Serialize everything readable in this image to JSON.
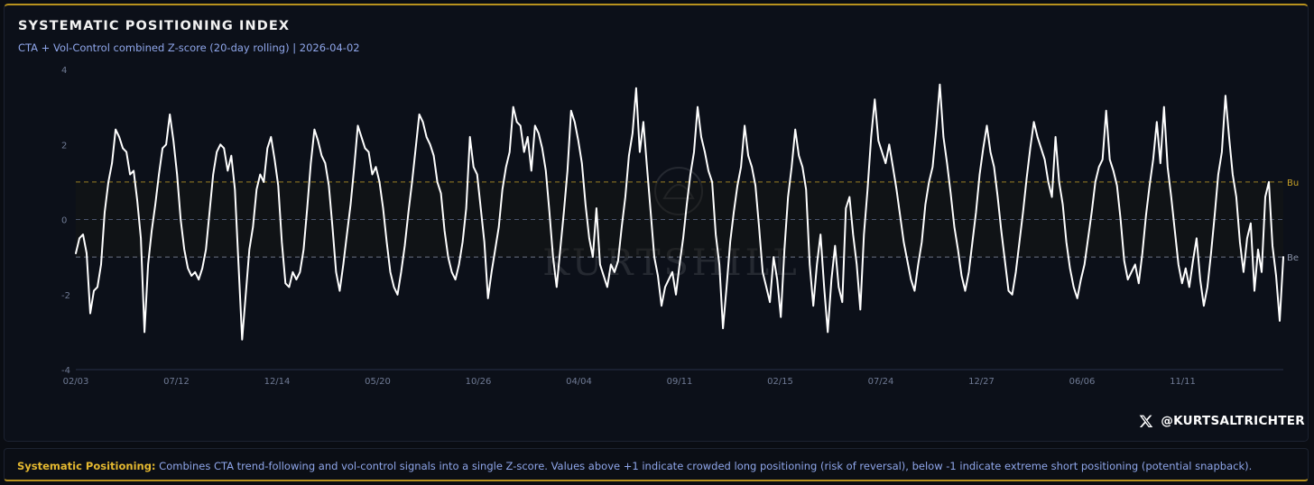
{
  "header": {
    "title": "SYSTEMATIC POSITIONING INDEX",
    "subtitle": "CTA + Vol-Control combined Z-score (20-day rolling) | 2026-04-02"
  },
  "watermark": "KURTSHILL",
  "handle": {
    "text": "@KURTSALTRICHTER",
    "icon": "x-logo-icon"
  },
  "footer": {
    "lead": "Systematic Positioning:",
    "text": " Combines CTA trend-following and vol-control signals into a single Z-score. Values above +1 indicate crowded long positioning (risk of reversal), below -1 indicate extreme short positioning (potential snapback)."
  },
  "colors": {
    "line": "#ffffff",
    "bull": "#c9a227",
    "bear": "#8a93a8",
    "zero": "#5f6b8a",
    "accent": "#e4b830"
  },
  "chart_data": {
    "type": "line",
    "title": "SYSTEMATIC POSITIONING INDEX",
    "subtitle": "CTA + Vol-Control combined Z-score (20-day rolling) | 2026-04-02",
    "ylim": [
      -4,
      4
    ],
    "y_ticks": [
      4,
      2,
      0,
      -2,
      -4
    ],
    "x_ticks": [
      "02/03",
      "07/12",
      "12/14",
      "05/20",
      "10/26",
      "04/04",
      "09/11",
      "02/15",
      "07/24",
      "12/27",
      "06/06",
      "11/11"
    ],
    "reference_lines": [
      {
        "label": "Bu",
        "value": 1,
        "color": "#c9a227"
      },
      {
        "label": "Be",
        "value": -1,
        "color": "#8a93a8"
      },
      {
        "label": "",
        "value": 0,
        "color": "#5f6b8a"
      }
    ],
    "series": [
      {
        "values": [
          -0.9,
          -0.5,
          -0.4,
          -0.9,
          -2.5,
          -1.9,
          -1.8,
          -1.2,
          0.2,
          1.0,
          1.5,
          2.4,
          2.2,
          1.9,
          1.8,
          1.2,
          1.3,
          0.5,
          -0.5,
          -3.0,
          -1.2,
          -0.3,
          0.4,
          1.2,
          1.9,
          2.0,
          2.8,
          2.1,
          1.2,
          0.0,
          -0.8,
          -1.3,
          -1.5,
          -1.4,
          -1.6,
          -1.3,
          -0.8,
          0.2,
          1.2,
          1.8,
          2.0,
          1.9,
          1.3,
          1.7,
          0.8,
          -1.2,
          -3.2,
          -2.0,
          -0.8,
          -0.2,
          0.8,
          1.2,
          1.0,
          1.9,
          2.2,
          1.6,
          0.9,
          -0.6,
          -1.7,
          -1.8,
          -1.4,
          -1.6,
          -1.4,
          -0.8,
          0.3,
          1.5,
          2.4,
          2.1,
          1.7,
          1.5,
          0.9,
          -0.2,
          -1.4,
          -1.9,
          -1.2,
          -0.4,
          0.4,
          1.4,
          2.5,
          2.2,
          1.9,
          1.8,
          1.2,
          1.4,
          1.0,
          0.3,
          -0.6,
          -1.4,
          -1.8,
          -2.0,
          -1.4,
          -0.7,
          0.2,
          1.0,
          1.9,
          2.8,
          2.6,
          2.2,
          2.0,
          1.7,
          1.0,
          0.7,
          -0.3,
          -1.0,
          -1.4,
          -1.6,
          -1.2,
          -0.6,
          0.3,
          2.2,
          1.4,
          1.2,
          0.3,
          -0.6,
          -2.1,
          -1.4,
          -0.8,
          -0.2,
          0.8,
          1.4,
          1.8,
          3.0,
          2.6,
          2.5,
          1.8,
          2.2,
          1.3,
          2.5,
          2.3,
          1.9,
          1.3,
          0.2,
          -1.0,
          -1.8,
          -0.8,
          0.2,
          1.3,
          2.9,
          2.6,
          2.1,
          1.5,
          0.4,
          -0.5,
          -1.0,
          0.3,
          -1.2,
          -1.5,
          -1.8,
          -1.2,
          -1.4,
          -1.1,
          -0.2,
          0.6,
          1.7,
          2.3,
          3.5,
          1.8,
          2.6,
          1.4,
          0.2,
          -1.0,
          -1.5,
          -2.3,
          -1.8,
          -1.6,
          -1.4,
          -2.0,
          -1.2,
          -0.5,
          0.4,
          1.2,
          1.8,
          3.0,
          2.2,
          1.8,
          1.3,
          1.0,
          -0.4,
          -1.2,
          -2.9,
          -1.8,
          -0.6,
          0.2,
          0.9,
          1.4,
          2.5,
          1.7,
          1.4,
          0.9,
          -0.2,
          -1.4,
          -1.8,
          -2.2,
          -1.0,
          -1.6,
          -2.6,
          -0.8,
          0.6,
          1.4,
          2.4,
          1.7,
          1.4,
          0.8,
          -1.2,
          -2.3,
          -1.2,
          -0.4,
          -1.8,
          -3.0,
          -1.6,
          -0.7,
          -1.8,
          -2.2,
          0.3,
          0.6,
          -0.4,
          -1.2,
          -2.4,
          -0.4,
          0.8,
          2.2,
          3.2,
          2.1,
          1.8,
          1.5,
          2.0,
          1.4,
          0.8,
          0.1,
          -0.6,
          -1.1,
          -1.6,
          -1.9,
          -1.2,
          -0.6,
          0.4,
          1.0,
          1.4,
          2.4,
          3.6,
          2.2,
          1.5,
          0.7,
          -0.2,
          -0.8,
          -1.5,
          -1.9,
          -1.4,
          -0.6,
          0.2,
          1.2,
          1.9,
          2.5,
          1.8,
          1.4,
          0.6,
          -0.3,
          -1.1,
          -1.9,
          -2.0,
          -1.4,
          -0.6,
          0.2,
          1.1,
          1.9,
          2.6,
          2.2,
          1.9,
          1.6,
          1.0,
          0.6,
          2.2,
          1.0,
          0.4,
          -0.6,
          -1.3,
          -1.8,
          -2.1,
          -1.6,
          -1.2,
          -0.5,
          0.2,
          1.0,
          1.4,
          1.6,
          2.9,
          1.6,
          1.3,
          0.9,
          0.0,
          -1.1,
          -1.6,
          -1.4,
          -1.2,
          -1.7,
          -0.9,
          0.1,
          0.9,
          1.6,
          2.6,
          1.5,
          3.0,
          1.4,
          0.6,
          -0.3,
          -1.2,
          -1.7,
          -1.3,
          -1.8,
          -1.1,
          -0.5,
          -1.6,
          -2.3,
          -1.8,
          -0.9,
          0.1,
          1.2,
          1.8,
          3.3,
          2.2,
          1.2,
          0.6,
          -0.6,
          -1.4,
          -0.5,
          -0.1,
          -1.9,
          -0.8,
          -1.4,
          0.6,
          1.0,
          -0.7,
          -1.5,
          -2.7,
          -1.0
        ],
        "color": "#ffffff"
      }
    ],
    "grid": false
  }
}
